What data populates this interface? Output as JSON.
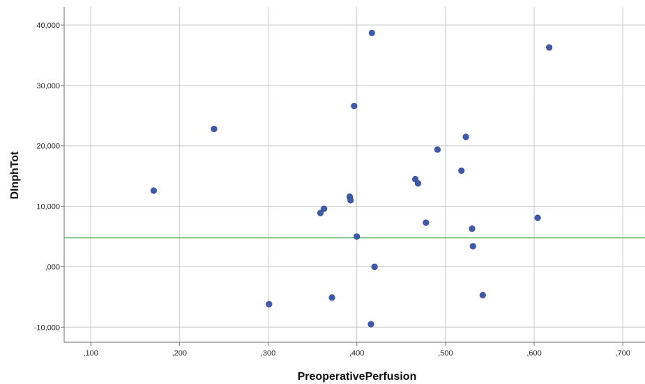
{
  "colors": {
    "background": "#ffffff",
    "grid": "#c8c8c8",
    "axis": "#6e6e6e",
    "point": "#3f5aa8",
    "reference_line": "#7bc17b"
  },
  "chart_data": {
    "type": "scatter",
    "xlabel": "PreoperativePerfusion",
    "ylabel": "DInphTot",
    "xlim": [
      0.07,
      0.725
    ],
    "ylim": [
      -12500,
      43000
    ],
    "x_ticks": [
      0.1,
      0.2,
      0.3,
      0.4,
      0.5,
      0.6,
      0.7
    ],
    "x_tick_labels": [
      ",100",
      ",200",
      ",300",
      ",400",
      ",500",
      ",600",
      ",700"
    ],
    "y_ticks": [
      -10000,
      0,
      10000,
      20000,
      30000,
      40000
    ],
    "y_tick_labels": [
      "-10,000",
      ",000",
      "10,000",
      "20,000",
      "30,000",
      "40,000"
    ],
    "grid": true,
    "reference_line": {
      "orientation": "horizontal",
      "y": 4800
    },
    "points": [
      {
        "x": 0.171,
        "y": 12600
      },
      {
        "x": 0.239,
        "y": 22800
      },
      {
        "x": 0.301,
        "y": -6200
      },
      {
        "x": 0.359,
        "y": 8900
      },
      {
        "x": 0.363,
        "y": 9600
      },
      {
        "x": 0.372,
        "y": -5100
      },
      {
        "x": 0.392,
        "y": 11600
      },
      {
        "x": 0.393,
        "y": 11000
      },
      {
        "x": 0.397,
        "y": 26600
      },
      {
        "x": 0.4,
        "y": 5000
      },
      {
        "x": 0.416,
        "y": -9500
      },
      {
        "x": 0.417,
        "y": 38700
      },
      {
        "x": 0.42,
        "y": 0
      },
      {
        "x": 0.466,
        "y": 14500
      },
      {
        "x": 0.469,
        "y": 13800
      },
      {
        "x": 0.478,
        "y": 7300
      },
      {
        "x": 0.491,
        "y": 19400
      },
      {
        "x": 0.518,
        "y": 15900
      },
      {
        "x": 0.523,
        "y": 21500
      },
      {
        "x": 0.53,
        "y": 6300
      },
      {
        "x": 0.531,
        "y": 3400
      },
      {
        "x": 0.542,
        "y": -4700
      },
      {
        "x": 0.604,
        "y": 8100
      },
      {
        "x": 0.617,
        "y": 36300
      }
    ]
  }
}
